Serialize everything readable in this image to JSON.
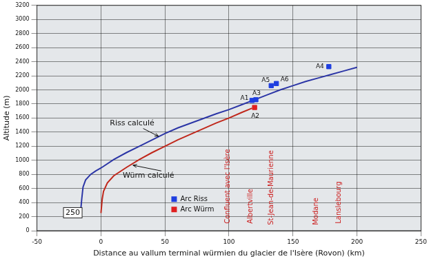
{
  "chart_data": {
    "type": "line",
    "x_label": "Distance au vallum terminal würmien du glacier de l'Isère (Rovon) (km)",
    "y_label": "Altitude (m)",
    "xlim": [
      -50,
      250
    ],
    "xticks": [
      -50,
      0,
      50,
      100,
      150,
      200,
      250
    ],
    "ylim": [
      0,
      3200
    ],
    "yticks": [
      0,
      200,
      400,
      600,
      800,
      1000,
      1200,
      1400,
      1600,
      1800,
      2000,
      2200,
      2400,
      2600,
      2800,
      3000,
      3200
    ],
    "grid": true,
    "legend": "lower center",
    "series": [
      {
        "name": "Riss calculé",
        "type": "line",
        "marker": "none",
        "color": "#2b35a6",
        "x": [
          -24,
          -16,
          -15,
          -14,
          -12,
          -8,
          -4,
          0,
          10,
          20,
          30,
          40,
          50,
          60,
          75,
          90,
          100,
          110,
          120,
          130,
          140,
          150,
          160,
          170,
          180,
          190,
          200
        ],
        "values": [
          250,
          250,
          450,
          620,
          720,
          800,
          850,
          890,
          1010,
          1110,
          1200,
          1290,
          1380,
          1460,
          1560,
          1660,
          1720,
          1790,
          1860,
          1930,
          2000,
          2060,
          2120,
          2170,
          2220,
          2270,
          2320
        ],
        "label_at": [
          7,
          1520
        ],
        "arrow_to": [
          45,
          1340
        ]
      },
      {
        "name": "Würm calculé",
        "type": "line",
        "marker": "none",
        "color": "#c0281c",
        "x": [
          0,
          1,
          2,
          5,
          10,
          20,
          30,
          40,
          50,
          60,
          75,
          90,
          100,
          110,
          118
        ],
        "values": [
          250,
          450,
          560,
          680,
          780,
          900,
          1010,
          1110,
          1200,
          1290,
          1410,
          1530,
          1600,
          1680,
          1740
        ],
        "label_at": [
          17,
          780
        ],
        "arrow_to": [
          25,
          930
        ]
      },
      {
        "name": "Arc Riss",
        "type": "scatter",
        "marker": "square",
        "color": "#1f3fe0",
        "x": [
          118,
          121,
          133,
          137,
          178
        ],
        "values": [
          1850,
          1860,
          2060,
          2090,
          2330
        ],
        "point_labels": [
          "A1",
          "A3",
          "A5",
          "A6",
          "A4"
        ]
      },
      {
        "name": "Arc Würm",
        "type": "scatter",
        "marker": "square",
        "color": "#e02020",
        "x": [
          120
        ],
        "values": [
          1750
        ],
        "point_labels": [
          "A2"
        ]
      }
    ],
    "annotations": [
      {
        "text": "250",
        "x": -22,
        "y": 250
      }
    ],
    "places": [
      {
        "text": "Confluent avec l'Isère",
        "x": 99,
        "y": 100
      },
      {
        "text": "Albertville",
        "x": 117,
        "y": 100
      },
      {
        "text": "St-Jean-de-Maurienne",
        "x": 133,
        "y": 80
      },
      {
        "text": "Modane",
        "x": 168,
        "y": 80
      },
      {
        "text": "Lanslebourg",
        "x": 186,
        "y": 100
      }
    ]
  }
}
